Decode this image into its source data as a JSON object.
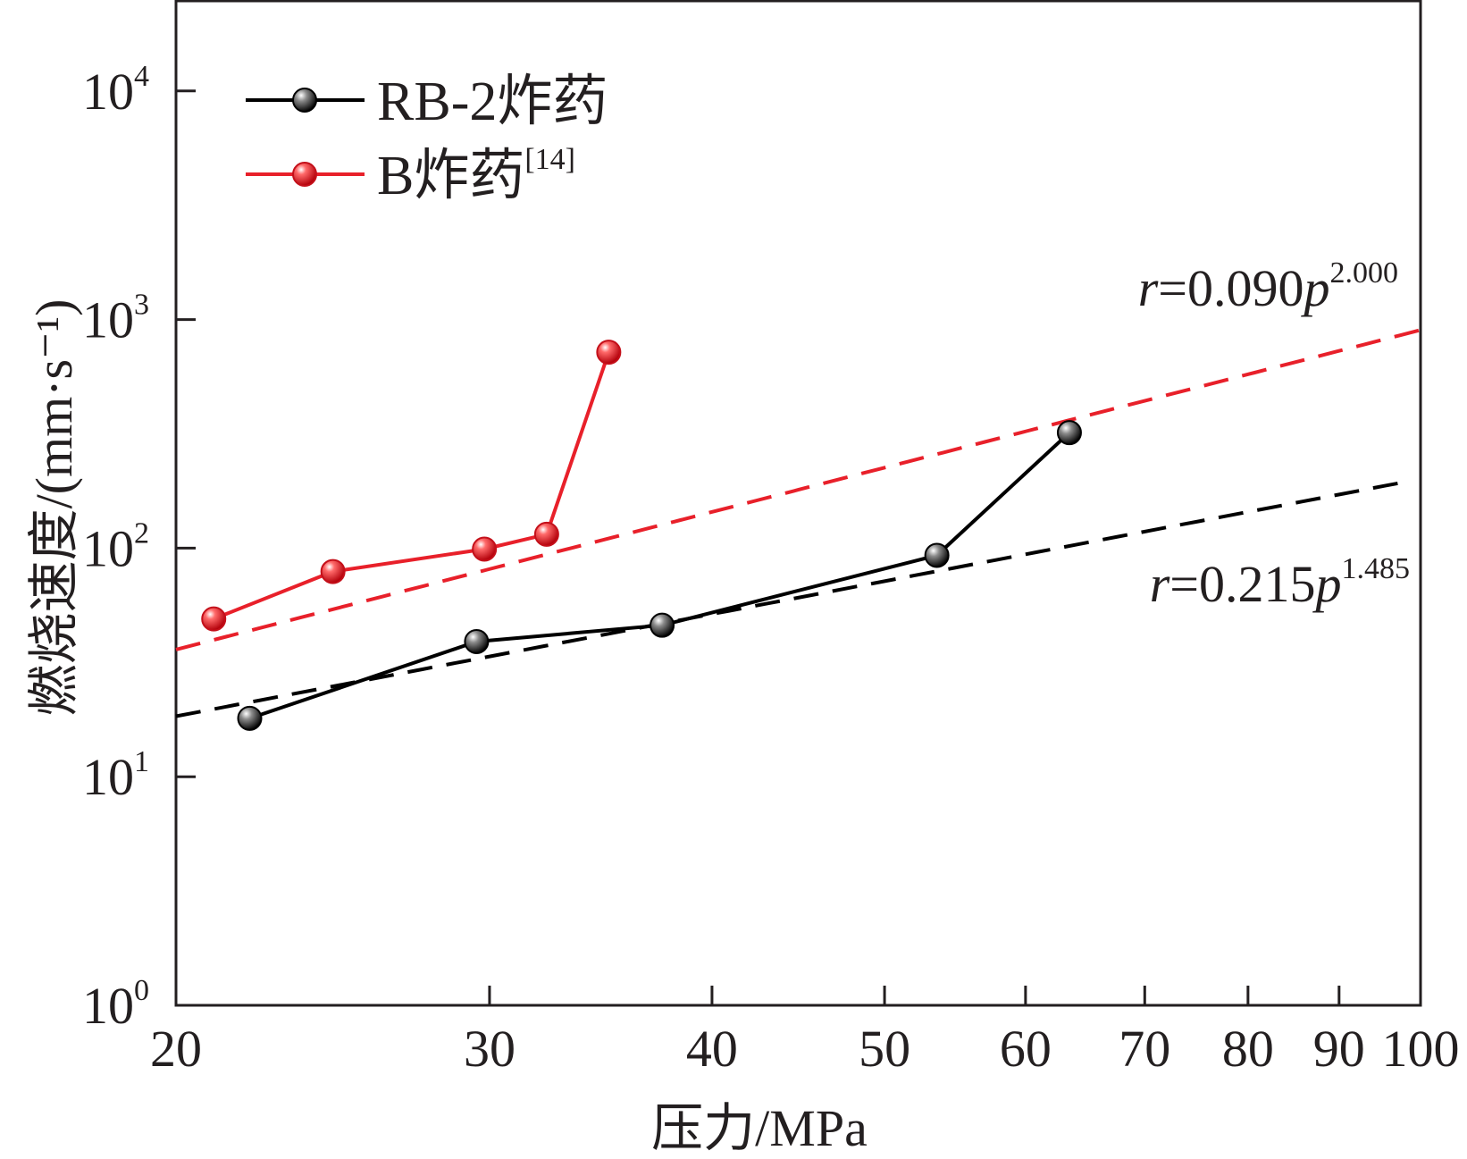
{
  "chart_data": {
    "type": "line",
    "xlabel": "压力/MPa",
    "ylabel": "燃烧速度/(mm·s⁻¹)",
    "xscale": "log",
    "yscale": "log",
    "xlim": [
      20,
      100
    ],
    "ylim": [
      1,
      25000
    ],
    "x_ticks": [
      20,
      30,
      40,
      50,
      60,
      70,
      80,
      90,
      100
    ],
    "y_ticks": [
      {
        "base": "10",
        "exp": "0",
        "value": 1
      },
      {
        "base": "10",
        "exp": "1",
        "value": 10
      },
      {
        "base": "10",
        "exp": "2",
        "value": 100
      },
      {
        "base": "10",
        "exp": "3",
        "value": 1000
      },
      {
        "base": "10",
        "exp": "4",
        "value": 10000
      }
    ],
    "grid": false,
    "legend_position": "top-left",
    "series": [
      {
        "name": "RB-2炸药",
        "color": "#000000",
        "marker": "sphere-black",
        "x": [
          22,
          29.5,
          37.5,
          53.5,
          63.5
        ],
        "y": [
          18,
          39,
          46,
          93,
          320
        ]
      },
      {
        "name": "B炸药",
        "name_sup": "[14]",
        "color": "#e8202a",
        "marker": "sphere-red",
        "x": [
          21,
          24.5,
          29.8,
          32.3,
          35
        ],
        "y": [
          49,
          79,
          99,
          115,
          720
        ]
      }
    ],
    "fits": [
      {
        "series": "B炸药",
        "color": "#e8202a",
        "coef": 0.09,
        "exponent": 2.0,
        "x_range": [
          20,
          100
        ],
        "label_var": "r",
        "label_mid": "=0.090",
        "label_p": "p",
        "label_exp": "2.000"
      },
      {
        "series": "RB-2炸药",
        "color": "#000000",
        "coef": 0.215,
        "exponent": 1.485,
        "x_range": [
          20,
          98
        ],
        "label_var": "r",
        "label_mid": "=0.215",
        "label_p": "p",
        "label_exp": "1.485"
      }
    ]
  }
}
